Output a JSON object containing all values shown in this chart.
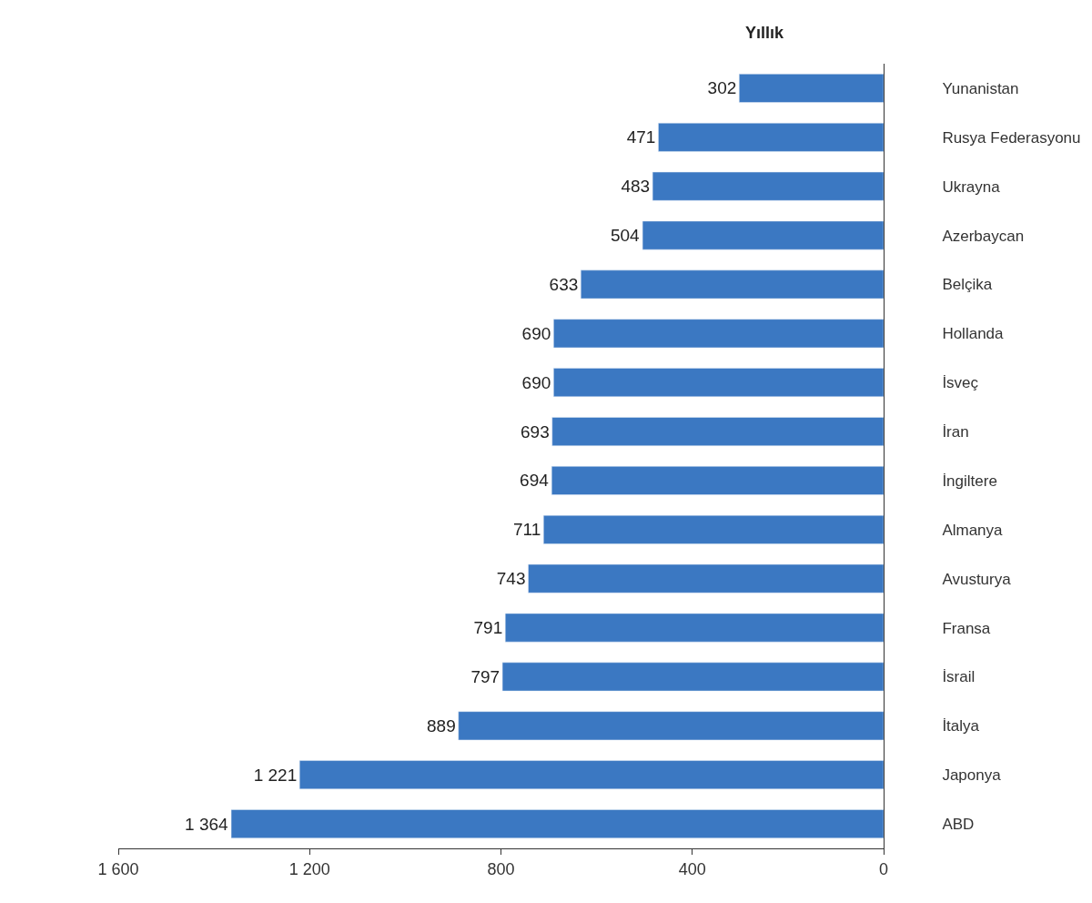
{
  "chart_data": {
    "type": "bar",
    "orientation": "horizontal",
    "title": "Yıllık",
    "categories": [
      "Yunanistan",
      "Rusya Federasyonu",
      "Ukrayna",
      "Azerbaycan",
      "Belçika",
      "Hollanda",
      "İsveç",
      "İran",
      "İngiltere",
      "Almanya",
      "Avusturya",
      "Fransa",
      "İsrail",
      "İtalya",
      "Japonya",
      "ABD"
    ],
    "values": [
      302,
      471,
      483,
      504,
      633,
      690,
      690,
      693,
      694,
      711,
      743,
      791,
      797,
      889,
      1221,
      1364
    ],
    "value_labels": [
      "302",
      "471",
      "483",
      "504",
      "633",
      "690",
      "690",
      "693",
      "694",
      "711",
      "743",
      "791",
      "797",
      "889",
      "1 221",
      "1 364"
    ],
    "color": "#3b78c2",
    "xlim": [
      1600,
      0
    ],
    "xticks": [
      {
        "value": 1600,
        "label": "1 600"
      },
      {
        "value": 1200,
        "label": "1 200"
      },
      800,
      400,
      0
    ],
    "tick_labels": "xy"
  }
}
